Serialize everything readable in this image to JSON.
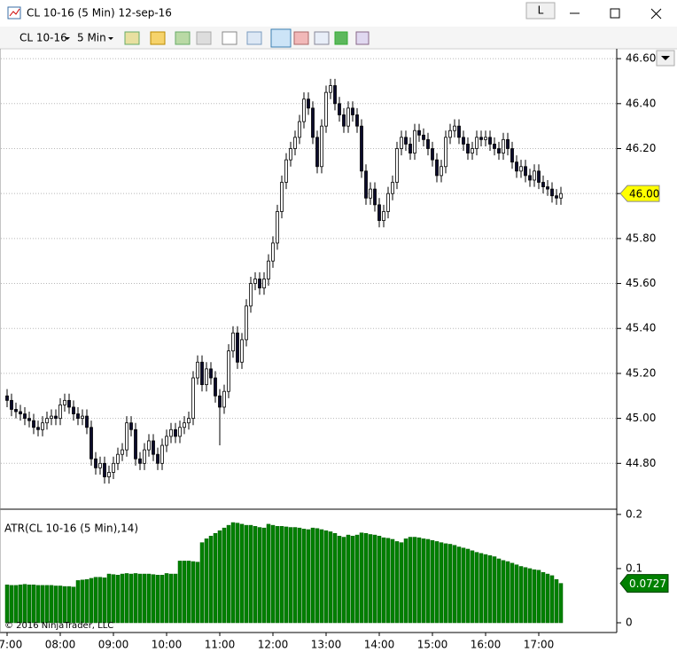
{
  "window": {
    "title": "CL 10-16 (5 Min)  12-sep-16",
    "button": "L"
  },
  "toolbar": {
    "instrument": "CL 10-16",
    "interval": "5 Min"
  },
  "copyright": "© 2016 NinjaTrader, LLC",
  "chart_data": [
    {
      "type": "candlestick",
      "x": [
        "07:00",
        "07:05",
        "07:10",
        "07:15",
        "07:20",
        "07:25",
        "07:30",
        "07:35",
        "07:40",
        "07:45",
        "07:50",
        "07:55",
        "08:00",
        "08:05",
        "08:10",
        "08:15",
        "08:20",
        "08:25",
        "08:30",
        "08:35",
        "08:40",
        "08:45",
        "08:50",
        "08:55",
        "09:00",
        "09:05",
        "09:10",
        "09:15",
        "09:20",
        "09:25",
        "09:30",
        "09:35",
        "09:40",
        "09:45",
        "09:50",
        "09:55",
        "10:00",
        "10:05",
        "10:10",
        "10:15",
        "10:20",
        "10:25",
        "10:30",
        "10:35",
        "10:40",
        "10:45",
        "10:50",
        "10:55",
        "11:00",
        "11:05",
        "11:10",
        "11:15",
        "11:20",
        "11:25",
        "11:30",
        "11:35",
        "11:40",
        "11:45",
        "11:50",
        "11:55",
        "12:00",
        "12:05",
        "12:10",
        "12:15",
        "12:20",
        "12:25",
        "12:30",
        "12:35",
        "12:40",
        "12:45",
        "12:50",
        "12:55",
        "13:00",
        "13:05",
        "13:10",
        "13:15",
        "13:20",
        "13:25",
        "13:30",
        "13:35",
        "13:40",
        "13:45",
        "13:50",
        "13:55",
        "14:00",
        "14:05",
        "14:10",
        "14:15",
        "14:20",
        "14:25",
        "14:30",
        "14:35",
        "14:40",
        "14:45",
        "14:50",
        "14:55",
        "15:00",
        "15:05",
        "15:10",
        "15:15",
        "15:20",
        "15:25",
        "15:30",
        "15:35",
        "15:40",
        "15:45",
        "15:50",
        "15:55",
        "16:00",
        "16:05",
        "16:10",
        "16:15",
        "16:20",
        "16:25",
        "16:30",
        "16:35",
        "16:40",
        "16:45",
        "16:50",
        "16:55",
        "17:00",
        "17:05",
        "17:10",
        "17:15",
        "17:20",
        "17:25"
      ],
      "open": [
        45.1,
        45.08,
        45.04,
        45.03,
        45.02,
        45.0,
        44.99,
        44.96,
        44.95,
        44.98,
        45.0,
        45.01,
        45.0,
        45.06,
        45.08,
        45.05,
        45.02,
        45.0,
        45.01,
        44.96,
        44.82,
        44.78,
        44.8,
        44.74,
        44.76,
        44.8,
        44.84,
        44.86,
        44.98,
        44.95,
        44.82,
        44.8,
        44.86,
        44.9,
        44.84,
        44.8,
        44.88,
        44.92,
        44.95,
        44.92,
        44.96,
        44.98,
        45.0,
        45.18,
        45.25,
        45.15,
        45.22,
        45.18,
        45.1,
        45.05,
        45.12,
        45.3,
        45.38,
        45.25,
        45.35,
        45.5,
        45.6,
        45.62,
        45.58,
        45.62,
        45.7,
        45.78,
        45.92,
        46.05,
        46.15,
        46.2,
        46.25,
        46.32,
        46.42,
        46.38,
        46.25,
        46.12,
        46.3,
        46.45,
        46.48,
        46.4,
        46.35,
        46.3,
        46.38,
        46.35,
        46.3,
        46.1,
        45.98,
        46.02,
        45.95,
        45.88,
        45.92,
        46.0,
        46.05,
        46.2,
        46.25,
        46.22,
        46.18,
        46.28,
        46.26,
        46.24,
        46.2,
        46.15,
        46.08,
        46.12,
        46.25,
        46.28,
        46.3,
        46.25,
        46.22,
        46.18,
        46.2,
        46.25,
        46.24,
        46.25,
        46.22,
        46.2,
        46.18,
        46.24,
        46.2,
        46.14,
        46.1,
        46.12,
        46.08,
        46.06,
        46.1,
        46.05,
        46.03,
        46.02,
        45.99,
        45.98
      ],
      "high": [
        45.13,
        45.11,
        45.07,
        45.06,
        45.05,
        45.03,
        45.02,
        44.99,
        45.01,
        45.03,
        45.04,
        45.04,
        45.09,
        45.11,
        45.11,
        45.08,
        45.05,
        45.04,
        45.04,
        44.99,
        44.85,
        44.83,
        44.83,
        44.79,
        44.83,
        44.87,
        44.89,
        45.01,
        45.01,
        44.98,
        44.85,
        44.89,
        44.93,
        44.93,
        44.87,
        44.91,
        44.95,
        44.98,
        44.98,
        44.99,
        45.01,
        45.03,
        45.21,
        45.28,
        45.28,
        45.25,
        45.25,
        45.21,
        45.13,
        45.15,
        45.33,
        45.41,
        45.41,
        45.38,
        45.53,
        45.63,
        45.65,
        45.65,
        45.65,
        45.73,
        45.81,
        45.95,
        46.08,
        46.18,
        46.23,
        46.28,
        46.35,
        46.45,
        46.45,
        46.41,
        46.28,
        46.33,
        46.48,
        46.51,
        46.51,
        46.43,
        46.38,
        46.41,
        46.41,
        46.38,
        46.33,
        46.13,
        46.05,
        46.05,
        45.98,
        45.95,
        46.03,
        46.08,
        46.23,
        46.28,
        46.28,
        46.25,
        46.31,
        46.31,
        46.29,
        46.27,
        46.23,
        46.18,
        46.15,
        46.28,
        46.31,
        46.33,
        46.33,
        46.28,
        46.25,
        46.23,
        46.28,
        46.28,
        46.28,
        46.28,
        46.25,
        46.23,
        46.27,
        46.27,
        46.23,
        46.17,
        46.15,
        46.15,
        46.11,
        46.13,
        46.13,
        46.08,
        46.06,
        46.05,
        46.02,
        46.03
      ],
      "low": [
        45.05,
        45.01,
        45.0,
        44.99,
        44.97,
        44.96,
        44.93,
        44.92,
        44.92,
        44.95,
        44.97,
        44.97,
        44.97,
        45.03,
        45.02,
        44.99,
        44.97,
        44.97,
        44.93,
        44.79,
        44.75,
        44.75,
        44.71,
        44.71,
        44.73,
        44.77,
        44.81,
        44.83,
        44.92,
        44.79,
        44.77,
        44.77,
        44.83,
        44.81,
        44.77,
        44.77,
        44.85,
        44.89,
        44.89,
        44.89,
        44.93,
        44.95,
        44.97,
        45.15,
        45.12,
        45.12,
        45.15,
        45.07,
        44.88,
        45.02,
        45.09,
        45.27,
        45.22,
        45.22,
        45.32,
        45.47,
        45.57,
        45.55,
        45.55,
        45.59,
        45.67,
        45.75,
        45.89,
        46.02,
        46.12,
        46.17,
        46.22,
        46.29,
        46.35,
        46.22,
        46.09,
        46.09,
        46.27,
        46.42,
        46.37,
        46.32,
        46.27,
        46.27,
        46.32,
        46.27,
        46.07,
        45.95,
        45.95,
        45.92,
        45.85,
        45.85,
        45.89,
        45.97,
        46.02,
        46.17,
        46.19,
        46.15,
        46.15,
        46.23,
        46.21,
        46.17,
        46.12,
        46.05,
        46.05,
        46.09,
        46.22,
        46.25,
        46.22,
        46.19,
        46.15,
        46.15,
        46.17,
        46.21,
        46.21,
        46.19,
        46.17,
        46.15,
        46.15,
        46.17,
        46.11,
        46.07,
        46.07,
        46.05,
        46.03,
        46.03,
        46.02,
        46.0,
        45.99,
        45.96,
        45.95,
        45.95
      ],
      "close": [
        45.08,
        45.04,
        45.03,
        45.02,
        45.0,
        44.99,
        44.96,
        44.95,
        44.98,
        45.0,
        45.01,
        45.0,
        45.06,
        45.08,
        45.05,
        45.02,
        45.0,
        45.01,
        44.96,
        44.82,
        44.78,
        44.8,
        44.74,
        44.76,
        44.8,
        44.84,
        44.86,
        44.98,
        44.95,
        44.82,
        44.8,
        44.86,
        44.9,
        44.84,
        44.8,
        44.88,
        44.92,
        44.95,
        44.92,
        44.96,
        44.98,
        45.0,
        45.18,
        45.25,
        45.15,
        45.22,
        45.18,
        45.1,
        45.05,
        45.12,
        45.3,
        45.38,
        45.25,
        45.35,
        45.5,
        45.6,
        45.62,
        45.58,
        45.62,
        45.7,
        45.78,
        45.92,
        46.05,
        46.15,
        46.2,
        46.25,
        46.32,
        46.42,
        46.38,
        46.25,
        46.12,
        46.3,
        46.45,
        46.48,
        46.4,
        46.35,
        46.3,
        46.38,
        46.35,
        46.3,
        46.1,
        45.98,
        46.02,
        45.95,
        45.88,
        45.92,
        46.0,
        46.05,
        46.2,
        46.25,
        46.22,
        46.18,
        46.28,
        46.26,
        46.24,
        46.2,
        46.15,
        46.08,
        46.12,
        46.25,
        46.28,
        46.3,
        46.25,
        46.22,
        46.18,
        46.2,
        46.25,
        46.24,
        46.25,
        46.22,
        46.2,
        46.18,
        46.24,
        46.2,
        46.14,
        46.1,
        46.12,
        46.08,
        46.06,
        46.1,
        46.05,
        46.03,
        46.02,
        45.99,
        45.98,
        46.0
      ],
      "up_color": "#ffffff",
      "down_color": "#0b0b2b",
      "wick_color": "#000000",
      "ylim": [
        44.6,
        46.636
      ],
      "yticks": [
        {
          "value": 44.8,
          "label": "44.80"
        },
        {
          "value": 45,
          "label": "45.00"
        },
        {
          "value": 45.2,
          "label": "45.20"
        },
        {
          "value": 45.4,
          "label": "45.40"
        },
        {
          "value": 45.6,
          "label": "45.60"
        },
        {
          "value": 45.8,
          "label": "45.80"
        },
        {
          "value": 46,
          "label": "46.00"
        },
        {
          "value": 46.2,
          "label": "46.20"
        },
        {
          "value": 46.4,
          "label": "46.40"
        },
        {
          "value": 46.6,
          "label": "46.60"
        }
      ],
      "xticks": [
        "07:00",
        "08:00",
        "09:00",
        "10:00",
        "11:00",
        "12:00",
        "13:00",
        "14:00",
        "15:00",
        "16:00",
        "17:00"
      ],
      "grid": true,
      "current_price": {
        "value": 46,
        "label": "46.00"
      },
      "marker_color": "#ffff00"
    },
    {
      "type": "bar",
      "title": "ATR(CL 10-16 (5 Min),14)",
      "color": "#008000",
      "values": [
        0.07,
        0.069,
        0.069,
        0.07,
        0.071,
        0.07,
        0.07,
        0.069,
        0.069,
        0.069,
        0.069,
        0.068,
        0.068,
        0.067,
        0.067,
        0.066,
        0.078,
        0.079,
        0.08,
        0.082,
        0.084,
        0.084,
        0.083,
        0.09,
        0.089,
        0.088,
        0.09,
        0.091,
        0.09,
        0.091,
        0.09,
        0.09,
        0.09,
        0.089,
        0.088,
        0.088,
        0.091,
        0.09,
        0.09,
        0.114,
        0.114,
        0.114,
        0.113,
        0.112,
        0.148,
        0.155,
        0.16,
        0.165,
        0.17,
        0.175,
        0.18,
        0.185,
        0.184,
        0.182,
        0.18,
        0.18,
        0.178,
        0.176,
        0.175,
        0.182,
        0.18,
        0.178,
        0.178,
        0.177,
        0.176,
        0.176,
        0.175,
        0.173,
        0.172,
        0.175,
        0.174,
        0.172,
        0.17,
        0.168,
        0.165,
        0.16,
        0.158,
        0.162,
        0.16,
        0.162,
        0.166,
        0.165,
        0.163,
        0.162,
        0.16,
        0.157,
        0.156,
        0.154,
        0.15,
        0.148,
        0.155,
        0.158,
        0.158,
        0.157,
        0.155,
        0.154,
        0.152,
        0.15,
        0.148,
        0.146,
        0.145,
        0.143,
        0.14,
        0.138,
        0.136,
        0.133,
        0.13,
        0.128,
        0.126,
        0.124,
        0.122,
        0.118,
        0.115,
        0.113,
        0.11,
        0.107,
        0.104,
        0.102,
        0.1,
        0.098,
        0.097,
        0.093,
        0.09,
        0.087,
        0.08,
        0.0727
      ],
      "ylim": [
        -0.018,
        0.208
      ],
      "yticks": [
        0,
        0.1,
        0.2
      ],
      "current_value": 0.0727
    }
  ]
}
